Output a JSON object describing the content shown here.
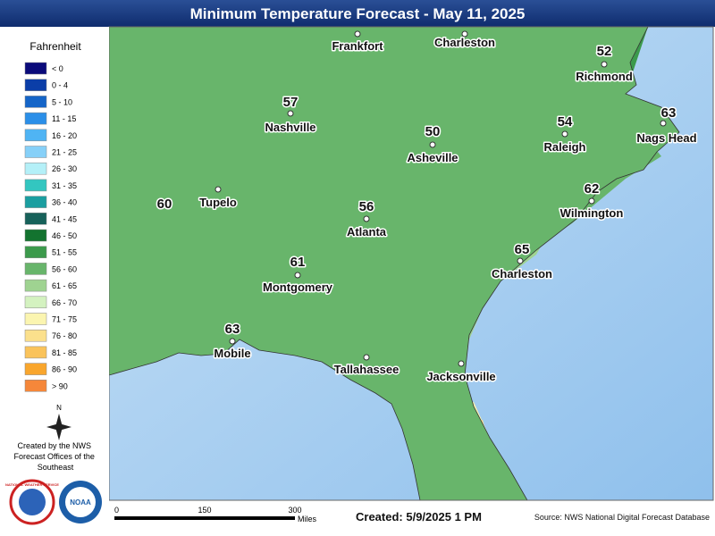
{
  "title": "Minimum Temperature Forecast - May 11, 2025",
  "legend": {
    "title": "Fahrenheit",
    "items": [
      {
        "label": "< 0",
        "color": "#0b0b7a"
      },
      {
        "label": "0 - 4",
        "color": "#0b3ea8"
      },
      {
        "label": "5 - 10",
        "color": "#1565c8"
      },
      {
        "label": "11 - 15",
        "color": "#2b8fe8"
      },
      {
        "label": "16 - 20",
        "color": "#4fb4f4"
      },
      {
        "label": "21 - 25",
        "color": "#86d0f8"
      },
      {
        "label": "26 - 30",
        "color": "#b4f0f8"
      },
      {
        "label": "31 - 35",
        "color": "#33c6c0"
      },
      {
        "label": "36 - 40",
        "color": "#1a9ea0"
      },
      {
        "label": "41 - 45",
        "color": "#17615a"
      },
      {
        "label": "46 - 50",
        "color": "#13732f"
      },
      {
        "label": "51 - 55",
        "color": "#3c9a4c"
      },
      {
        "label": "56 - 60",
        "color": "#68b56b"
      },
      {
        "label": "61 - 65",
        "color": "#9fd391"
      },
      {
        "label": "66 - 70",
        "color": "#d4f2c0"
      },
      {
        "label": "71 - 75",
        "color": "#fbf5b0"
      },
      {
        "label": "76 - 80",
        "color": "#fbe08c"
      },
      {
        "label": "81 - 85",
        "color": "#fac35a"
      },
      {
        "label": "86 - 90",
        "color": "#f9a62d"
      },
      {
        "label": "> 90",
        "color": "#f5873a"
      }
    ]
  },
  "compass": "N",
  "credit": [
    "Created by the NWS",
    "Forecast Offices of the",
    "Southeast"
  ],
  "logos": [
    "NATIONAL WEATHER SERVICE",
    "NOAA"
  ],
  "places": [
    {
      "name": "Frankfort"
    },
    {
      "name": "Charleston"
    },
    {
      "name": "Richmond",
      "temp": 52
    },
    {
      "name": "Nashville",
      "temp": 57
    },
    {
      "name": "Raleigh",
      "temp": 54
    },
    {
      "name": "Nags Head",
      "temp": 63
    },
    {
      "name": "Asheville",
      "temp": 50
    },
    {
      "name": "Tupelo"
    },
    {
      "temp": 60
    },
    {
      "name": "Atlanta",
      "temp": 56
    },
    {
      "name": "Wilmington",
      "temp": 62
    },
    {
      "name": "Charleston",
      "temp": 65
    },
    {
      "name": "Montgomery",
      "temp": 61
    },
    {
      "name": "Mobile",
      "temp": 63
    },
    {
      "name": "Tallahassee"
    },
    {
      "name": "Jacksonville"
    }
  ],
  "scale": {
    "ticks": [
      "0",
      "150",
      "300"
    ],
    "unit": "Miles"
  },
  "created": "Created: 5/9/2025 1 PM",
  "source": "Source: NWS National Digital Forecast Database"
}
